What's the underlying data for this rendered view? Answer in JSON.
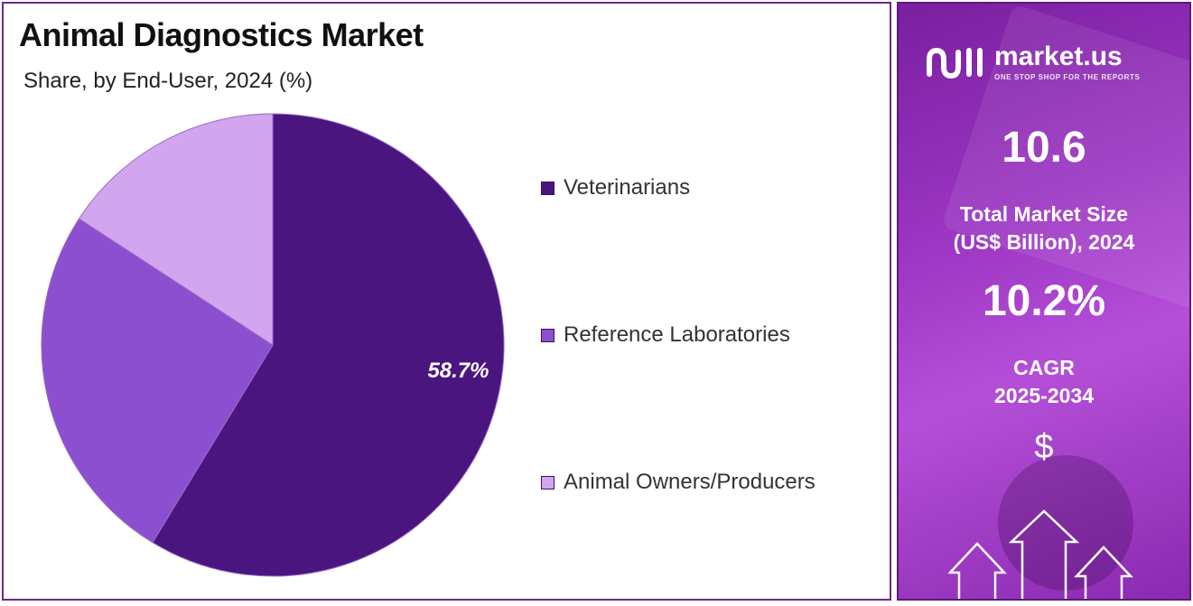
{
  "chart_data": {
    "type": "pie",
    "title": "Animal Diagnostics Market",
    "subtitle": "Share, by End-User, 2024 (%)",
    "categories": [
      "Veterinarians",
      "Reference Laboratories",
      "Animal Owners/Producers"
    ],
    "values": [
      58.7,
      25.5,
      15.8
    ],
    "colors": [
      "#4b1580",
      "#8b4fd0",
      "#d2a6ee"
    ],
    "data_labels": [
      "58.7%",
      "",
      ""
    ],
    "legend_position": "right"
  },
  "side_panel": {
    "brand_name": "market.us",
    "brand_tagline": "ONE STOP SHOP FOR THE REPORTS",
    "market_size_value": "10.6",
    "market_size_label_line1": "Total Market Size",
    "market_size_label_line2": "(US$ Billion), 2024",
    "cagr_value": "10.2%",
    "cagr_label_line1": "CAGR",
    "cagr_label_line2": "2025-2034",
    "currency_symbol": "$",
    "icons": [
      "market-us-logo-icon",
      "up-arrows-icon"
    ]
  }
}
